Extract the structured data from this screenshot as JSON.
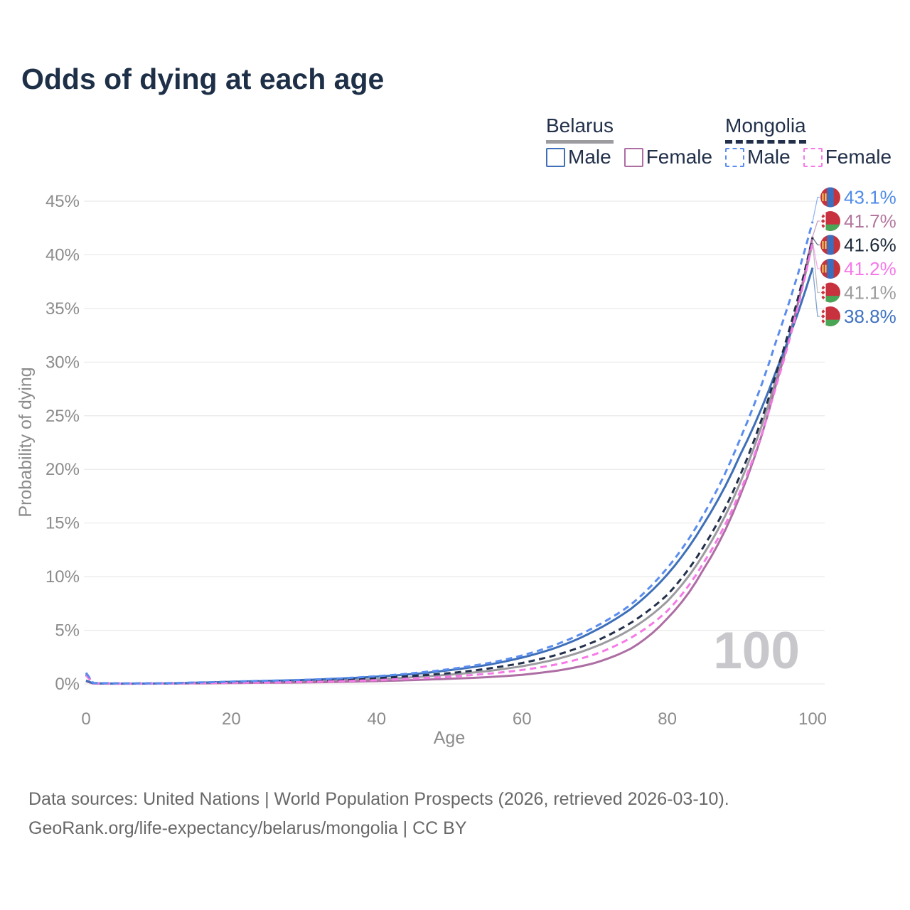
{
  "title": "Odds of dying at each age",
  "watermark": "100",
  "legend": {
    "groups": [
      {
        "header": "Belarus",
        "underline_series": "belarus-total",
        "items": [
          {
            "label": "Male",
            "series": "belarus-male"
          },
          {
            "label": "Female",
            "series": "belarus-female"
          }
        ]
      },
      {
        "header": "Mongolia",
        "underline_series": "mongolia-total",
        "items": [
          {
            "label": "Male",
            "series": "mongolia-male"
          },
          {
            "label": "Female",
            "series": "mongolia-female"
          }
        ]
      }
    ]
  },
  "footer": {
    "line1": "Data sources: United Nations | World Population Prospects (2026, retrieved 2026-03-10).",
    "line2": "GeoRank.org/life-expectancy/belarus/mongolia | CC BY"
  },
  "chart_data": {
    "type": "line",
    "title": "Odds of dying at each age",
    "xlabel": "Age",
    "ylabel": "Probability of dying",
    "xlim": [
      0,
      100
    ],
    "ylim_percent": [
      0,
      45
    ],
    "x_ticks": [
      0,
      20,
      40,
      60,
      80,
      100
    ],
    "y_ticks": [
      "0%",
      "5%",
      "10%",
      "15%",
      "20%",
      "25%",
      "30%",
      "35%",
      "40%",
      "45%"
    ],
    "grid": "horizontal",
    "legend_position": "top-right",
    "ages": [
      0,
      1,
      5,
      10,
      15,
      20,
      25,
      30,
      35,
      40,
      45,
      50,
      55,
      60,
      65,
      70,
      75,
      80,
      85,
      90,
      95,
      100
    ],
    "series": [
      {
        "key": "belarus-total",
        "name": "Belarus",
        "country": "Belarus",
        "sex": "Both",
        "color": "#9b9ba0",
        "dashed": false,
        "end_label": "41.1%",
        "end_label_color": "#9c9c9c",
        "flag_icon": "belarus-flag-icon",
        "values_percent": [
          0.28,
          0.04,
          0.03,
          0.03,
          0.08,
          0.13,
          0.18,
          0.24,
          0.33,
          0.45,
          0.62,
          0.86,
          1.18,
          1.65,
          2.35,
          3.45,
          5.1,
          7.7,
          12.1,
          18.7,
          28.5,
          41.1
        ]
      },
      {
        "key": "belarus-female",
        "name": "Belarus Female",
        "country": "Belarus",
        "sex": "Female",
        "color": "#ad6ea3",
        "dashed": false,
        "end_label": "41.7%",
        "end_label_color": "#b4779e",
        "flag_icon": "belarus-flag-icon",
        "values_percent": [
          0.25,
          0.03,
          0.02,
          0.03,
          0.05,
          0.08,
          0.11,
          0.14,
          0.19,
          0.26,
          0.36,
          0.48,
          0.62,
          0.85,
          1.25,
          1.95,
          3.3,
          6.1,
          10.7,
          17.5,
          28.0,
          41.7
        ]
      },
      {
        "key": "belarus-male",
        "name": "Belarus Male",
        "country": "Belarus",
        "sex": "Male",
        "color": "#3e6fb8",
        "dashed": false,
        "end_label": "38.8%",
        "end_label_color": "#3f72c1",
        "flag_icon": "belarus-flag-icon",
        "values_percent": [
          0.32,
          0.05,
          0.03,
          0.04,
          0.11,
          0.2,
          0.28,
          0.37,
          0.5,
          0.68,
          0.92,
          1.28,
          1.75,
          2.45,
          3.45,
          4.95,
          7.0,
          10.2,
          14.9,
          21.3,
          29.2,
          38.8
        ]
      },
      {
        "key": "mongolia-total",
        "name": "Mongolia",
        "country": "Mongolia",
        "sex": "Both",
        "color": "#22304a",
        "dashed": true,
        "end_label": "41.6%",
        "end_label_color": "#1d2a3a",
        "flag_icon": "mongolia-flag-icon",
        "values_percent": [
          0.9,
          0.07,
          0.04,
          0.05,
          0.1,
          0.16,
          0.22,
          0.28,
          0.38,
          0.54,
          0.74,
          1.0,
          1.4,
          1.95,
          2.75,
          3.95,
          5.7,
          8.3,
          12.8,
          19.4,
          29.0,
          41.6
        ]
      },
      {
        "key": "mongolia-female",
        "name": "Mongolia Female",
        "country": "Mongolia",
        "sex": "Female",
        "color": "#f57ae6",
        "dashed": true,
        "end_label": "41.2%",
        "end_label_color": "#f678e8",
        "flag_icon": "mongolia-flag-icon",
        "values_percent": [
          0.8,
          0.06,
          0.03,
          0.04,
          0.07,
          0.11,
          0.14,
          0.18,
          0.25,
          0.36,
          0.5,
          0.68,
          0.93,
          1.3,
          1.85,
          2.75,
          4.3,
          6.8,
          11.3,
          17.9,
          27.8,
          41.2
        ]
      },
      {
        "key": "mongolia-male",
        "name": "Mongolia Male",
        "country": "Mongolia",
        "sex": "Male",
        "color": "#5b8def",
        "dashed": true,
        "end_label": "43.1%",
        "end_label_color": "#4e8be8",
        "flag_icon": "mongolia-flag-icon",
        "values_percent": [
          1.05,
          0.09,
          0.05,
          0.06,
          0.13,
          0.22,
          0.3,
          0.38,
          0.52,
          0.72,
          1.0,
          1.38,
          1.9,
          2.65,
          3.75,
          5.3,
          7.4,
          10.8,
          15.8,
          22.8,
          32.0,
          43.1
        ]
      }
    ]
  }
}
